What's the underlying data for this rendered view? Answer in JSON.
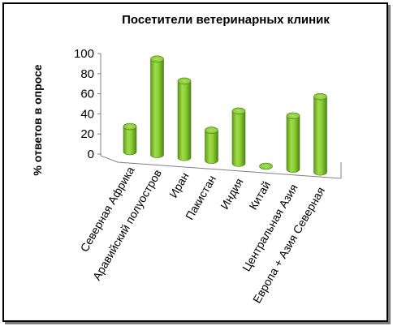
{
  "chart_data": {
    "type": "bar",
    "style": "3d-cylinder",
    "title": "Посетители ветеринарных  клиник",
    "ylabel": "% ответов в опросе",
    "xlabel": "",
    "ylim": [
      0,
      100
    ],
    "yticks": [
      "0",
      "20",
      "40",
      "60",
      "80",
      "100"
    ],
    "categories": [
      "Северная Африка",
      "Аравийский полуостров",
      "Иран",
      "Пакистан",
      "Индия",
      "Китай",
      "Центральная Азия",
      "Европа + Азия Северная"
    ],
    "values": [
      25,
      95,
      76,
      30,
      52,
      0,
      53,
      75
    ],
    "bar_color": "#8cc63f",
    "grid": false,
    "legend": "none"
  }
}
